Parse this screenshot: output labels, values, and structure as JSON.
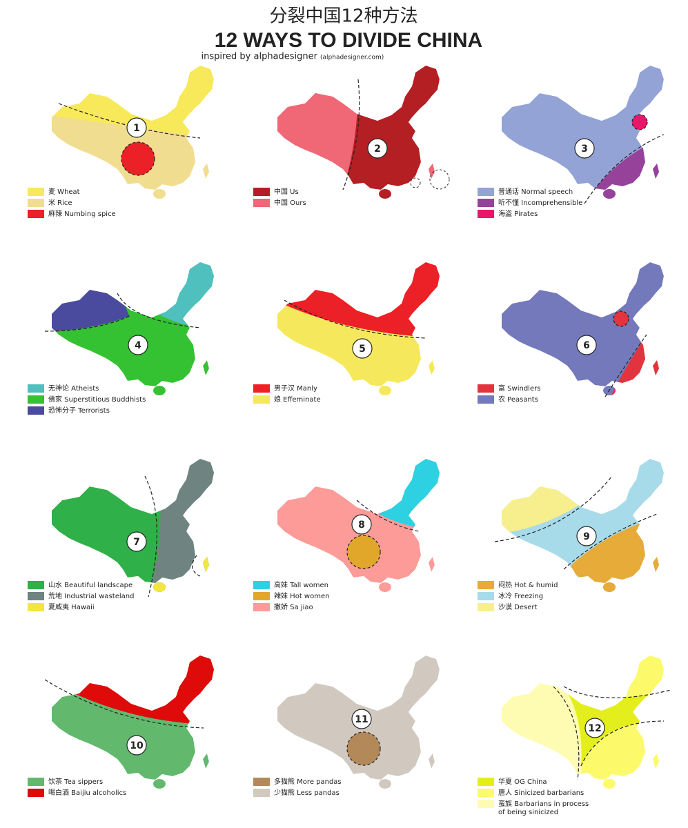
{
  "header": {
    "title_cn": "分裂中国12种方法",
    "title": "12 WAYS TO DIVIDE CHINA",
    "subtitle": "inspired by alphadesigner",
    "subtitle_small": "(alphadesigner.com)"
  },
  "panels": [
    {
      "number": "1",
      "legend": [
        {
          "label": "麦 Wheat",
          "color": "#f7e95a"
        },
        {
          "label": "米 Rice",
          "color": "#f1dd90"
        },
        {
          "label": "麻辣 Numbing spice",
          "color": "#ec2027"
        }
      ]
    },
    {
      "number": "2",
      "legend": [
        {
          "label": "中国 Us",
          "color": "#b41f24"
        },
        {
          "label": "中国 Ours",
          "color": "#f06776"
        }
      ]
    },
    {
      "number": "3",
      "legend": [
        {
          "label": "普通话 Normal speech",
          "color": "#93a3d5"
        },
        {
          "label": "听不懂 Incomprehensible",
          "color": "#96429b"
        },
        {
          "label": "海盗 Pirates",
          "color": "#e8176a"
        }
      ]
    },
    {
      "number": "4",
      "legend": [
        {
          "label": "无神论 Atheists",
          "color": "#4fc0bd"
        },
        {
          "label": "佛家 Superstitious Buddhists",
          "color": "#34c232"
        },
        {
          "label": "恐怖分子 Terrorists",
          "color": "#4a4b9e"
        }
      ]
    },
    {
      "number": "5",
      "legend": [
        {
          "label": "男子汉 Manly",
          "color": "#ec2027"
        },
        {
          "label": "娘 Effeminate",
          "color": "#f5e85c"
        }
      ]
    },
    {
      "number": "6",
      "legend": [
        {
          "label": "富 Swindlers",
          "color": "#e1343f"
        },
        {
          "label": "农 Peasants",
          "color": "#7479bb"
        }
      ]
    },
    {
      "number": "7",
      "legend": [
        {
          "label": "山水 Beautiful landscape",
          "color": "#30b049"
        },
        {
          "label": "荒地 Industrial wasteland",
          "color": "#6f8480"
        },
        {
          "label": "夏威夷 Hawaii",
          "color": "#f5e63e"
        }
      ]
    },
    {
      "number": "8",
      "legend": [
        {
          "label": "高妹 Tall women",
          "color": "#2ed1e1"
        },
        {
          "label": "辣妹 Hot women",
          "color": "#e0a72a"
        },
        {
          "label": "撒娇 Sa jiao",
          "color": "#fc9b98"
        }
      ]
    },
    {
      "number": "9",
      "legend": [
        {
          "label": "闷热 Hot & humid",
          "color": "#e6ab38"
        },
        {
          "label": "冰冷 Freezing",
          "color": "#a7dbe9"
        },
        {
          "label": "沙漠 Desert",
          "color": "#f7ef8d"
        }
      ]
    },
    {
      "number": "10",
      "legend": [
        {
          "label": "饮茶 Tea sippers",
          "color": "#62b96e"
        },
        {
          "label": "喝白酒 Baijiu alcoholics",
          "color": "#df0a0a"
        }
      ]
    },
    {
      "number": "11",
      "legend": [
        {
          "label": "多猫熊 More pandas",
          "color": "#b4895a"
        },
        {
          "label": "少猫熊 Less pandas",
          "color": "#d1c9c0"
        }
      ]
    },
    {
      "number": "12",
      "legend": [
        {
          "label": "华夏 OG China",
          "color": "#e3ee1c"
        },
        {
          "label": "唐人 Sinicized barbarians",
          "color": "#fcfa6a"
        },
        {
          "label": [
            "蛮族 Barbarians in process",
            "of being sinicized"
          ],
          "color": "#fefcb2"
        }
      ]
    }
  ]
}
